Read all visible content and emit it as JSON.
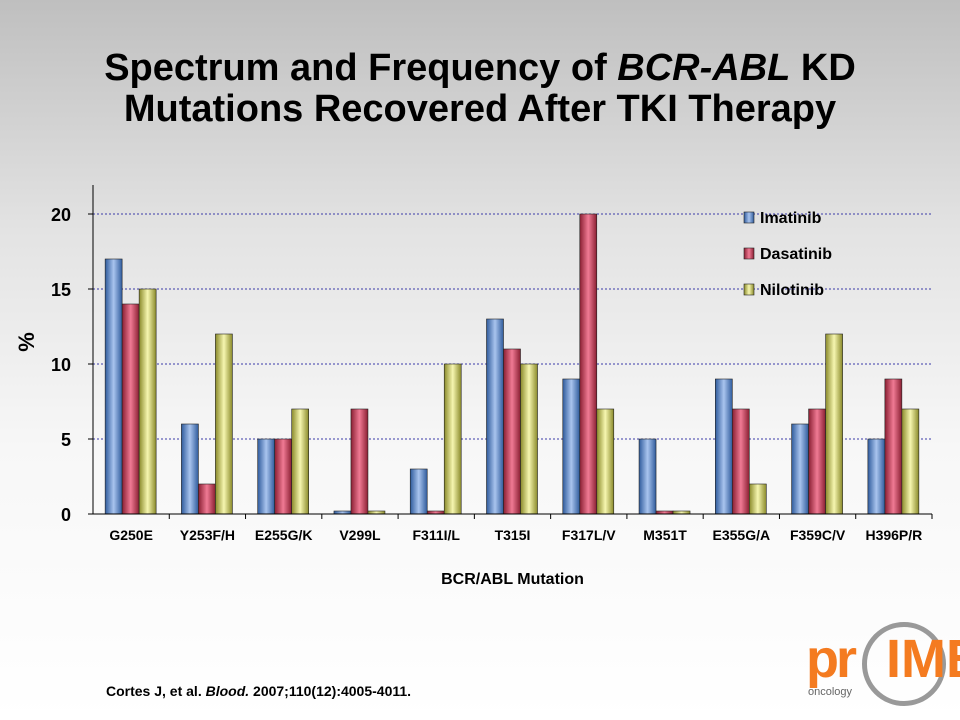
{
  "slide": {
    "title_part1": "Spectrum and Frequency of ",
    "title_italic": "BCR-ABL",
    "title_part2": " KD",
    "title_line2": "Mutations Recovered After TKI Therapy",
    "citation_author": "Cortes J, et al. ",
    "citation_journal": "Blood.",
    "citation_rest": " 2007;110(12):4005-4011.",
    "logo_pr": "pr",
    "logo_ime": "IME",
    "logo_sub": "oncology"
  },
  "chart_data": {
    "type": "bar",
    "xlabel": "BCR/ABL Mutation",
    "ylabel": "%",
    "ylim": [
      0,
      22
    ],
    "yticks": [
      0,
      5,
      10,
      15,
      20
    ],
    "grid": true,
    "legend_position": "top-right",
    "categories": [
      "G250E",
      "Y253F/H",
      "E255G/K",
      "V299L",
      "F311I/L",
      "T315I",
      "F317L/V",
      "M351T",
      "E355G/A",
      "F359C/V",
      "H396P/R"
    ],
    "series": [
      {
        "name": "Imatinib",
        "color": "#4f81bd",
        "values": [
          17,
          6,
          5,
          0.2,
          3,
          13,
          9,
          5,
          9,
          6,
          5
        ]
      },
      {
        "name": "Dasatinib",
        "color": "#c0504d",
        "values": [
          14,
          2,
          5,
          7,
          0.2,
          11,
          20,
          0.2,
          7,
          7,
          9
        ]
      },
      {
        "name": "Nilotinib",
        "color": "#d4d43a",
        "values": [
          15,
          12,
          7,
          0.2,
          10,
          10,
          7,
          0.2,
          2,
          12,
          7
        ]
      }
    ]
  }
}
